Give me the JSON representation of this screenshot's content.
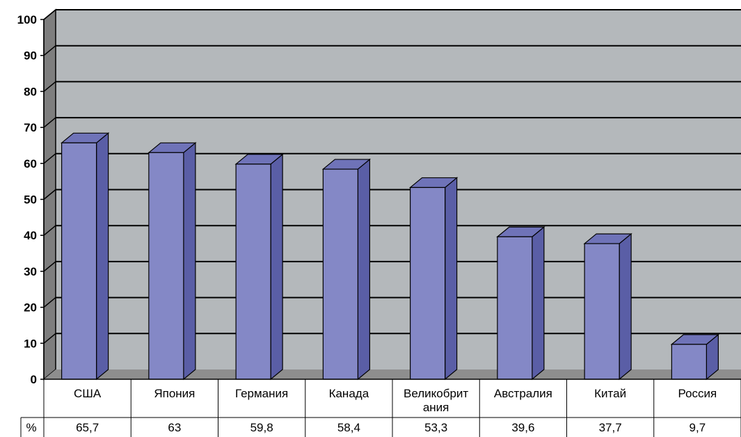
{
  "chart_data": {
    "type": "bar",
    "categories": [
      "США",
      "Япония",
      "Германия",
      "Канада",
      "Великобритания",
      "Австралия",
      "Китай",
      "Россия"
    ],
    "category_display": [
      [
        "США"
      ],
      [
        "Япония"
      ],
      [
        "Германия"
      ],
      [
        "Канада"
      ],
      [
        "Великобрит",
        "ания"
      ],
      [
        "Австралия"
      ],
      [
        "Китай"
      ],
      [
        "Россия"
      ]
    ],
    "series": [
      {
        "name": "%",
        "values": [
          65.7,
          63,
          59.8,
          58.4,
          53.3,
          39.6,
          37.7,
          9.7
        ]
      }
    ],
    "value_labels": [
      "65,7",
      "63",
      "59,8",
      "58,4",
      "53,3",
      "39,6",
      "37,7",
      "9,7"
    ],
    "yticks": [
      "0",
      "10",
      "20",
      "30",
      "40",
      "50",
      "60",
      "70",
      "80",
      "90",
      "100"
    ],
    "ylim": [
      0,
      100
    ],
    "grid": true,
    "data_table": true,
    "colors": {
      "bar_front": "#8488C6",
      "bar_side": "#5A5EA6",
      "bar_top": "#6F73B8",
      "back_wall": "#B4B8BB",
      "side_wall": "#7E7E7E",
      "floor": "#8E8E8E",
      "gridline": "#000000"
    }
  }
}
